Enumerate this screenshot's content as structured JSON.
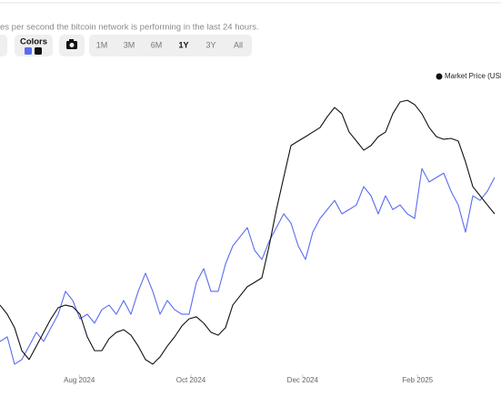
{
  "description": "es per second the bitcoin network is performing in the last 24 hours.",
  "controls": {
    "colors_label": "Colors",
    "ranges": [
      "1M",
      "3M",
      "6M",
      "1Y",
      "3Y",
      "All"
    ],
    "active_range": 3
  },
  "chart_data": {
    "type": "line",
    "xlim": [
      0,
      68
    ],
    "ylim": [
      0,
      100
    ],
    "xticks": [
      {
        "value": 10.9,
        "label": "Aug 2024"
      },
      {
        "value": 26.25,
        "label": "Oct 2024"
      },
      {
        "value": 41.6,
        "label": "Dec 2024"
      },
      {
        "value": 57.4,
        "label": "Feb 2025"
      }
    ],
    "legend": "top-right",
    "series": [
      {
        "color": "#5a6cf0",
        "values": [
          11.1,
          12.7,
          3.2,
          4.8,
          9.5,
          14.3,
          11.1,
          15.9,
          20.6,
          28.6,
          25.4,
          19.0,
          20.6,
          17.5,
          22.2,
          23.8,
          20.6,
          25.4,
          20.6,
          28.6,
          34.9,
          28.6,
          20.6,
          25.4,
          22.2,
          20.6,
          20.6,
          31.7,
          36.5,
          28.6,
          28.6,
          38.1,
          44.4,
          47.6,
          50.8,
          42.9,
          39.7,
          46.0,
          50.8,
          55.6,
          52.4,
          44.4,
          39.7,
          49.2,
          54.0,
          57.1,
          60.3,
          55.6,
          57.1,
          58.7,
          65.1,
          61.9,
          55.6,
          61.9,
          57.1,
          58.7,
          55.6,
          54.0,
          71.4,
          66.7,
          68.3,
          69.8,
          63.5,
          58.7,
          49.2,
          61.9,
          60.3,
          63.5,
          68.3
        ]
      },
      {
        "name": "Market Price (USD",
        "color": "#111111",
        "values": [
          23.8,
          20.6,
          15.9,
          7.9,
          4.8,
          9.5,
          14.3,
          19.0,
          22.9,
          23.8,
          23.2,
          20.6,
          12.7,
          7.9,
          7.9,
          12.1,
          14.3,
          15.2,
          13.3,
          9.5,
          4.8,
          3.2,
          5.7,
          9.5,
          12.7,
          16.5,
          19.0,
          19.7,
          17.5,
          14.3,
          13.3,
          15.9,
          23.8,
          27.0,
          30.2,
          31.7,
          33.3,
          44.4,
          57.1,
          68.3,
          79.4,
          81.0,
          82.5,
          84.1,
          85.7,
          89.5,
          92.7,
          90.5,
          84.1,
          81.0,
          77.8,
          79.4,
          82.5,
          84.1,
          90.5,
          94.6,
          95.2,
          93.7,
          90.5,
          85.7,
          82.5,
          81.6,
          81.9,
          81.0,
          73.7,
          65.1,
          61.9,
          58.7,
          55.6
        ]
      }
    ]
  }
}
